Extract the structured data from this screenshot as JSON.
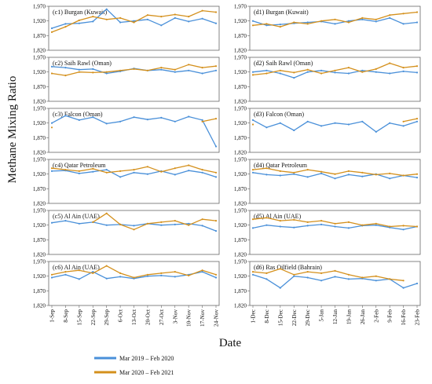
{
  "figure": {
    "ylabel": "Methane Mixing Ratio",
    "xlabel": "Date",
    "yticks": [
      "1,820",
      "1,870",
      "1,920",
      "1,970"
    ],
    "left_xticks": [
      "1-Sep",
      "8-Sep",
      "15-Sep",
      "22-Sep",
      "29-Sep",
      "6-Oct",
      "13-Oct",
      "20-Oct",
      "27-Oct",
      "3-Nov",
      "10-Nov",
      "17-Nov",
      "24-Nov"
    ],
    "right_xticks": [
      "1-Dec",
      "8-Dec",
      "15-Dec",
      "22-Dec",
      "29-Dec",
      "5-Jan",
      "12-Jan",
      "19-Jan",
      "26-Jan",
      "2-Feb",
      "9-Feb",
      "16-Feb",
      "23-Feb"
    ],
    "legend": [
      {
        "label": "Mar 2019 – Feb 2020",
        "color": "#4a90d9"
      },
      {
        "label": "Mar 2020 – Feb 2021",
        "color": "#d4901c"
      }
    ]
  },
  "chart_data": [
    {
      "type": "line",
      "title": "(c1) Burgan (Kuwait)",
      "xlabel": "Date",
      "ylabel": "Methane Mixing Ratio",
      "ylim": [
        1820,
        1970
      ],
      "x": [
        "1-Sep",
        "8-Sep",
        "15-Sep",
        "22-Sep",
        "29-Sep",
        "6-Oct",
        "13-Oct",
        "20-Oct",
        "27-Oct",
        "3-Nov",
        "10-Nov",
        "17-Nov",
        "24-Nov"
      ],
      "series": [
        {
          "name": "Mar 2019 – Feb 2020",
          "values": [
            1895,
            1910,
            1912,
            1918,
            1960,
            1915,
            1920,
            1925,
            1905,
            1930,
            1918,
            1928,
            1912
          ]
        },
        {
          "name": "Mar 2020 – Feb 2021",
          "values": [
            1882,
            1900,
            1922,
            1935,
            1925,
            1930,
            1915,
            1940,
            1935,
            1942,
            1935,
            1955,
            1950
          ]
        }
      ]
    },
    {
      "type": "line",
      "title": "(c2) Saih Rawl (Oman)",
      "xlabel": "Date",
      "ylabel": "Methane Mixing Ratio",
      "ylim": [
        1820,
        1970
      ],
      "x": [
        "1-Sep",
        "8-Sep",
        "15-Sep",
        "22-Sep",
        "29-Sep",
        "6-Oct",
        "13-Oct",
        "20-Oct",
        "27-Oct",
        "3-Nov",
        "10-Nov",
        "17-Nov",
        "24-Nov"
      ],
      "series": [
        {
          "name": "Mar 2019 – Feb 2020",
          "values": [
            1938,
            1935,
            1928,
            1930,
            1915,
            1922,
            1932,
            1925,
            1928,
            1920,
            1925,
            1915,
            1925
          ]
        },
        {
          "name": "Mar 2020 – Feb 2021",
          "values": [
            1915,
            1908,
            1920,
            1918,
            1920,
            1925,
            1930,
            1925,
            1935,
            1928,
            1945,
            1935,
            1940
          ]
        }
      ]
    },
    {
      "type": "line",
      "title": "(c3) Falcon (Oman)",
      "xlabel": "Date",
      "ylabel": "Methane Mixing Ratio",
      "ylim": [
        1820,
        1970
      ],
      "x": [
        "1-Sep",
        "8-Sep",
        "15-Sep",
        "22-Sep",
        "29-Sep",
        "6-Oct",
        "13-Oct",
        "20-Oct",
        "27-Oct",
        "3-Nov",
        "10-Nov",
        "17-Nov",
        "24-Nov"
      ],
      "series": [
        {
          "name": "Mar 2019 – Feb 2020",
          "values": [
            1920,
            1945,
            1930,
            1940,
            1918,
            1925,
            1940,
            1932,
            1938,
            1925,
            1942,
            1930,
            1840
          ]
        },
        {
          "name": "Mar 2020 – Feb 2021",
          "values": [
            1905,
            null,
            null,
            null,
            null,
            null,
            null,
            null,
            null,
            null,
            null,
            1925,
            1935
          ]
        }
      ]
    },
    {
      "type": "line",
      "title": "(c4) Qatar Petroleum",
      "xlabel": "Date",
      "ylabel": "Methane Mixing Ratio",
      "ylim": [
        1820,
        1970
      ],
      "x": [
        "1-Sep",
        "8-Sep",
        "15-Sep",
        "22-Sep",
        "29-Sep",
        "6-Oct",
        "13-Oct",
        "20-Oct",
        "27-Oct",
        "3-Nov",
        "10-Nov",
        "17-Nov",
        "24-Nov"
      ],
      "series": [
        {
          "name": "Mar 2019 – Feb 2020",
          "values": [
            1930,
            1932,
            1922,
            1928,
            1935,
            1910,
            1925,
            1920,
            1930,
            1918,
            1932,
            1925,
            1910
          ]
        },
        {
          "name": "Mar 2020 – Feb 2021",
          "values": [
            1940,
            1935,
            1930,
            1938,
            1925,
            1930,
            1935,
            1945,
            1928,
            1940,
            1950,
            1935,
            1925
          ]
        }
      ]
    },
    {
      "type": "line",
      "title": "(c5) Al Ain (UAE)",
      "xlabel": "Date",
      "ylabel": "Methane Mixing Ratio",
      "ylim": [
        1820,
        1970
      ],
      "x": [
        "1-Sep",
        "8-Sep",
        "15-Sep",
        "22-Sep",
        "29-Sep",
        "6-Oct",
        "13-Oct",
        "20-Oct",
        "27-Oct",
        "3-Nov",
        "10-Nov",
        "17-Nov",
        "24-Nov"
      ],
      "series": [
        {
          "name": "Mar 2019 – Feb 2020",
          "values": [
            1928,
            1935,
            1925,
            1930,
            1920,
            1922,
            1918,
            1925,
            1920,
            1922,
            1925,
            1918,
            1900
          ]
        },
        {
          "name": "Mar 2020 – Feb 2021",
          "values": [
            null,
            null,
            null,
            1930,
            1960,
            1922,
            1905,
            1925,
            1930,
            1935,
            1920,
            1940,
            1935
          ]
        }
      ]
    },
    {
      "type": "line",
      "title": "(c6) Al Ain (UAE)",
      "xlabel": "Date",
      "ylabel": "Methane Mixing Ratio",
      "ylim": [
        1820,
        1970
      ],
      "x": [
        "1-Sep",
        "8-Sep",
        "15-Sep",
        "22-Sep",
        "29-Sep",
        "6-Oct",
        "13-Oct",
        "20-Oct",
        "27-Oct",
        "3-Nov",
        "10-Nov",
        "17-Nov",
        "24-Nov"
      ],
      "series": [
        {
          "name": "Mar 2019 – Feb 2020",
          "values": [
            1915,
            1925,
            1910,
            1935,
            1912,
            1918,
            1912,
            1920,
            1922,
            1918,
            1925,
            1935,
            1915
          ]
        },
        {
          "name": "Mar 2020 – Feb 2021",
          "values": [
            1925,
            1935,
            1940,
            1930,
            1955,
            1930,
            1915,
            1925,
            1930,
            1935,
            1922,
            1940,
            1925
          ]
        }
      ]
    },
    {
      "type": "line",
      "title": "(d1) Burgan (Kuwait)",
      "xlabel": "Date",
      "ylabel": "Methane Mixing Ratio",
      "ylim": [
        1820,
        1970
      ],
      "x": [
        "1-Dec",
        "8-Dec",
        "15-Dec",
        "22-Dec",
        "29-Dec",
        "5-Jan",
        "12-Jan",
        "19-Jan",
        "26-Jan",
        "2-Feb",
        "9-Feb",
        "16-Feb",
        "23-Feb"
      ],
      "series": [
        {
          "name": "Mar 2019 – Feb 2020",
          "values": [
            1920,
            1905,
            1908,
            1912,
            1915,
            1918,
            1910,
            1920,
            1925,
            1918,
            1930,
            1910,
            1915
          ]
        },
        {
          "name": "Mar 2020 – Feb 2021",
          "values": [
            1905,
            1910,
            1900,
            1915,
            1910,
            1920,
            1925,
            1915,
            1930,
            1925,
            1940,
            1945,
            1950
          ]
        }
      ]
    },
    {
      "type": "line",
      "title": "(d2) Saih Rawl (Oman)",
      "xlabel": "Date",
      "ylabel": "Methane Mixing Ratio",
      "ylim": [
        1820,
        1970
      ],
      "x": [
        "1-Dec",
        "8-Dec",
        "15-Dec",
        "22-Dec",
        "29-Dec",
        "5-Jan",
        "12-Jan",
        "19-Jan",
        "26-Jan",
        "2-Feb",
        "9-Feb",
        "16-Feb",
        "23-Feb"
      ],
      "series": [
        {
          "name": "Mar 2019 – Feb 2020",
          "values": [
            1920,
            1925,
            1915,
            1900,
            1920,
            1925,
            1918,
            1915,
            1925,
            1920,
            1915,
            1922,
            1918
          ]
        },
        {
          "name": "Mar 2020 – Feb 2021",
          "values": [
            1910,
            1915,
            1925,
            1918,
            1928,
            1915,
            1925,
            1935,
            1920,
            1930,
            1950,
            1935,
            1940
          ]
        }
      ]
    },
    {
      "type": "line",
      "title": "(d3) Falcon (Oman)",
      "xlabel": "Date",
      "ylabel": "Methane Mixing Ratio",
      "ylim": [
        1820,
        1970
      ],
      "x": [
        "1-Dec",
        "8-Dec",
        "15-Dec",
        "22-Dec",
        "29-Dec",
        "5-Jan",
        "12-Jan",
        "19-Jan",
        "26-Jan",
        "2-Feb",
        "9-Feb",
        "16-Feb",
        "23-Feb"
      ],
      "series": [
        {
          "name": "Mar 2019 – Feb 2020",
          "values": [
            1930,
            1905,
            1920,
            1895,
            1925,
            1910,
            1920,
            1915,
            1925,
            1890,
            1920,
            1910,
            1925
          ]
        },
        {
          "name": "Mar 2020 – Feb 2021",
          "values": [
            1915,
            null,
            null,
            null,
            null,
            null,
            null,
            null,
            null,
            null,
            null,
            1925,
            1935
          ]
        }
      ]
    },
    {
      "type": "line",
      "title": "(d4) Qatar Petroleum",
      "xlabel": "Date",
      "ylabel": "Methane Mixing Ratio",
      "ylim": [
        1820,
        1970
      ],
      "x": [
        "1-Dec",
        "8-Dec",
        "15-Dec",
        "22-Dec",
        "29-Dec",
        "5-Jan",
        "12-Jan",
        "19-Jan",
        "26-Jan",
        "2-Feb",
        "9-Feb",
        "16-Feb",
        "23-Feb"
      ],
      "series": [
        {
          "name": "Mar 2019 – Feb 2020",
          "values": [
            1925,
            1918,
            1915,
            1920,
            1910,
            1922,
            1905,
            1918,
            1912,
            1920,
            1905,
            1915,
            1908
          ]
        },
        {
          "name": "Mar 2020 – Feb 2021",
          "values": [
            1935,
            1940,
            1930,
            1925,
            1935,
            1928,
            1920,
            1930,
            1925,
            1918,
            1922,
            1915,
            1920
          ]
        }
      ]
    },
    {
      "type": "line",
      "title": "(d5) Al Ain (UAE)",
      "xlabel": "Date",
      "ylabel": "Methane Mixing Ratio",
      "ylim": [
        1820,
        1970
      ],
      "x": [
        "1-Dec",
        "8-Dec",
        "15-Dec",
        "22-Dec",
        "29-Dec",
        "5-Jan",
        "12-Jan",
        "19-Jan",
        "26-Jan",
        "2-Feb",
        "9-Feb",
        "16-Feb",
        "23-Feb"
      ],
      "series": [
        {
          "name": "Mar 2019 – Feb 2020",
          "values": [
            1910,
            1920,
            1915,
            1912,
            1918,
            1922,
            1915,
            1910,
            1918,
            1920,
            1912,
            1905,
            1915
          ]
        },
        {
          "name": "Mar 2020 – Feb 2021",
          "values": [
            1940,
            1945,
            1935,
            1938,
            1930,
            1935,
            1925,
            1930,
            1920,
            1925,
            1915,
            1918,
            1915
          ]
        }
      ]
    },
    {
      "type": "line",
      "title": "(d6) Ras Oilfield (Bahrain)",
      "xlabel": "Date",
      "ylabel": "Methane Mixing Ratio",
      "ylim": [
        1820,
        1970
      ],
      "x": [
        "1-Dec",
        "8-Dec",
        "15-Dec",
        "22-Dec",
        "29-Dec",
        "5-Jan",
        "12-Jan",
        "19-Jan",
        "26-Jan",
        "2-Feb",
        "9-Feb",
        "16-Feb",
        "23-Feb"
      ],
      "series": [
        {
          "name": "Mar 2019 – Feb 2020",
          "values": [
            1925,
            1910,
            1880,
            1920,
            1915,
            1905,
            1918,
            1910,
            1912,
            1905,
            1910,
            1880,
            1895
          ]
        },
        {
          "name": "Mar 2020 – Feb 2021",
          "values": [
            1935,
            1930,
            1945,
            1925,
            1935,
            1930,
            1938,
            1925,
            1915,
            1920,
            1910,
            1905,
            null
          ]
        }
      ]
    }
  ]
}
